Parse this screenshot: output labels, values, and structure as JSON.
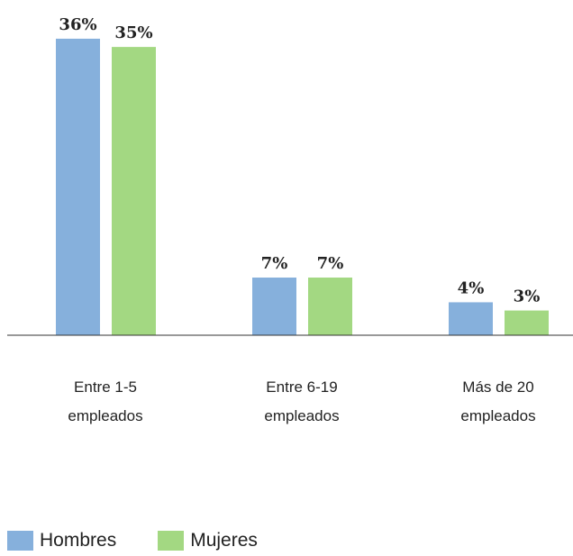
{
  "chart_data": {
    "type": "bar",
    "categories": [
      "Entre 1-5 empleados",
      "Entre 6-19 empleados",
      "Más de 20 empleados"
    ],
    "series": [
      {
        "name": "Hombres",
        "color": "#86b0dc",
        "values": [
          36,
          7,
          4
        ],
        "value_labels": [
          "36%",
          "7%",
          "4%"
        ]
      },
      {
        "name": "Mujeres",
        "color": "#a3d882",
        "values": [
          35,
          7,
          3
        ],
        "value_labels": [
          "35%",
          "7%",
          "3%"
        ]
      }
    ],
    "ylim": [
      0,
      40
    ]
  }
}
